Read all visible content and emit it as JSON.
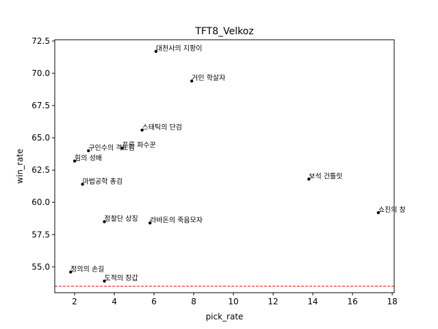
{
  "chart_data": {
    "type": "scatter",
    "title": "TFT8_Velkoz",
    "xlabel": "pick_rate",
    "ylabel": "win_rate",
    "xlim": [
      1.0,
      18.1
    ],
    "ylim": [
      53.0,
      72.6
    ],
    "xticks": [
      2,
      4,
      6,
      8,
      10,
      12,
      14,
      16,
      18
    ],
    "yticks": [
      55.0,
      57.5,
      60.0,
      62.5,
      65.0,
      67.5,
      70.0,
      72.5
    ],
    "grid": false,
    "reference_line": {
      "y": 53.5,
      "color": "#ff0000",
      "style": "dashed"
    },
    "marker_color": "#000000",
    "points": [
      {
        "label": "대천사의 지팡이",
        "x": 6.1,
        "y": 71.7
      },
      {
        "label": "거인 학살자",
        "x": 7.9,
        "y": 69.4
      },
      {
        "label": "스태틱의 단검",
        "x": 5.4,
        "y": 65.6
      },
      {
        "label": "푸른 파수꾼",
        "x": 4.4,
        "y": 64.2
      },
      {
        "label": "구인수의 격노검",
        "x": 2.7,
        "y": 64.0
      },
      {
        "label": "힘의 성배",
        "x": 2.0,
        "y": 63.2
      },
      {
        "label": "보석 건틀릿",
        "x": 13.8,
        "y": 61.8
      },
      {
        "label": "마법공학 총검",
        "x": 2.4,
        "y": 61.4
      },
      {
        "label": "쇼진의 창",
        "x": 17.3,
        "y": 59.2
      },
      {
        "label": "정찰단 상징",
        "x": 3.5,
        "y": 58.5
      },
      {
        "label": "라바돈의 죽음모자",
        "x": 5.8,
        "y": 58.4
      },
      {
        "label": "정의의 손길",
        "x": 1.8,
        "y": 54.6
      },
      {
        "label": "도적의 장갑",
        "x": 3.5,
        "y": 53.9
      }
    ]
  }
}
